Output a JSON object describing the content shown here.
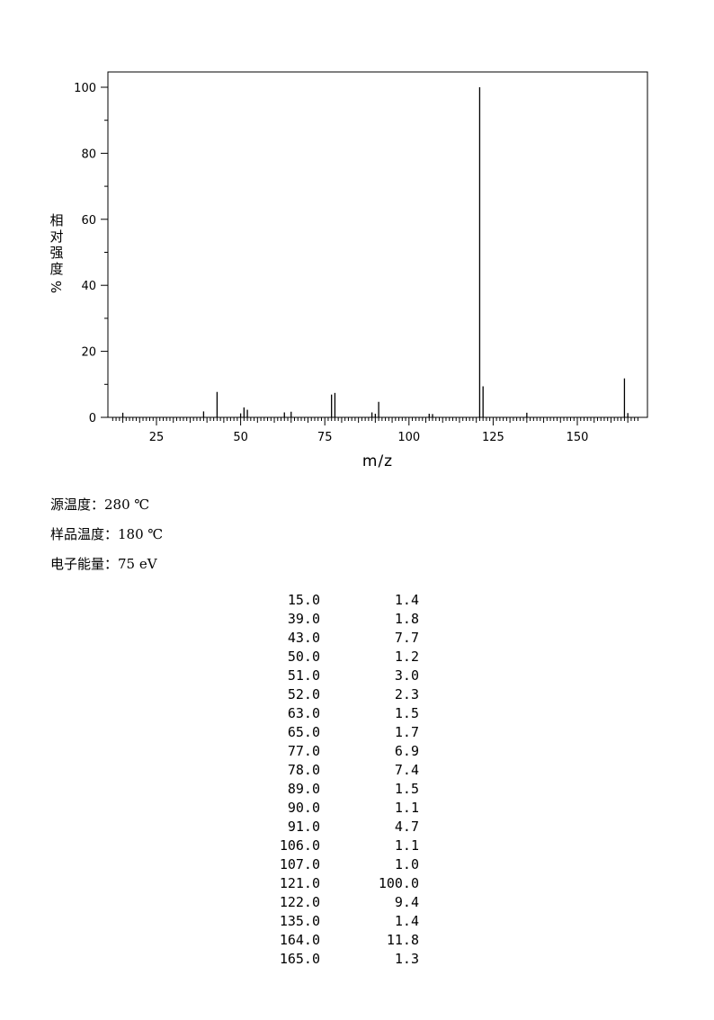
{
  "chart_data": {
    "type": "bar",
    "xlabel": "m/z",
    "ylabel": "相对强度%",
    "ylabel_chars": [
      "相",
      "对",
      "强",
      "度",
      "%"
    ],
    "xlim": [
      10,
      170
    ],
    "ylim": [
      0,
      105
    ],
    "x_ticks": [
      25,
      50,
      75,
      100,
      125,
      150
    ],
    "y_ticks": [
      0,
      20,
      40,
      60,
      80,
      100
    ],
    "peaks": [
      {
        "mz": 15,
        "intensity": 1.4
      },
      {
        "mz": 39,
        "intensity": 1.8
      },
      {
        "mz": 43,
        "intensity": 7.7
      },
      {
        "mz": 50,
        "intensity": 1.2
      },
      {
        "mz": 51,
        "intensity": 3.0
      },
      {
        "mz": 52,
        "intensity": 2.3
      },
      {
        "mz": 63,
        "intensity": 1.5
      },
      {
        "mz": 65,
        "intensity": 1.7
      },
      {
        "mz": 77,
        "intensity": 6.9
      },
      {
        "mz": 78,
        "intensity": 7.4
      },
      {
        "mz": 89,
        "intensity": 1.5
      },
      {
        "mz": 90,
        "intensity": 1.1
      },
      {
        "mz": 91,
        "intensity": 4.7
      },
      {
        "mz": 106,
        "intensity": 1.1
      },
      {
        "mz": 107,
        "intensity": 1.0
      },
      {
        "mz": 121,
        "intensity": 100.0
      },
      {
        "mz": 122,
        "intensity": 9.4
      },
      {
        "mz": 135,
        "intensity": 1.4
      },
      {
        "mz": 164,
        "intensity": 11.8
      },
      {
        "mz": 165,
        "intensity": 1.3
      }
    ]
  },
  "conditions": {
    "source_temp": "源温度：280 ℃",
    "sample_temp": "样品温度：180 ℃",
    "electron_energy": "电子能量：75 eV"
  },
  "peak_table": [
    {
      "mz": "15.0",
      "intensity": "1.4"
    },
    {
      "mz": "39.0",
      "intensity": "1.8"
    },
    {
      "mz": "43.0",
      "intensity": "7.7"
    },
    {
      "mz": "50.0",
      "intensity": "1.2"
    },
    {
      "mz": "51.0",
      "intensity": "3.0"
    },
    {
      "mz": "52.0",
      "intensity": "2.3"
    },
    {
      "mz": "63.0",
      "intensity": "1.5"
    },
    {
      "mz": "65.0",
      "intensity": "1.7"
    },
    {
      "mz": "77.0",
      "intensity": "6.9"
    },
    {
      "mz": "78.0",
      "intensity": "7.4"
    },
    {
      "mz": "89.0",
      "intensity": "1.5"
    },
    {
      "mz": "90.0",
      "intensity": "1.1"
    },
    {
      "mz": "91.0",
      "intensity": "4.7"
    },
    {
      "mz": "106.0",
      "intensity": "1.1"
    },
    {
      "mz": "107.0",
      "intensity": "1.0"
    },
    {
      "mz": "121.0",
      "intensity": "100.0"
    },
    {
      "mz": "122.0",
      "intensity": "9.4"
    },
    {
      "mz": "135.0",
      "intensity": "1.4"
    },
    {
      "mz": "164.0",
      "intensity": "11.8"
    },
    {
      "mz": "165.0",
      "intensity": "1.3"
    }
  ]
}
